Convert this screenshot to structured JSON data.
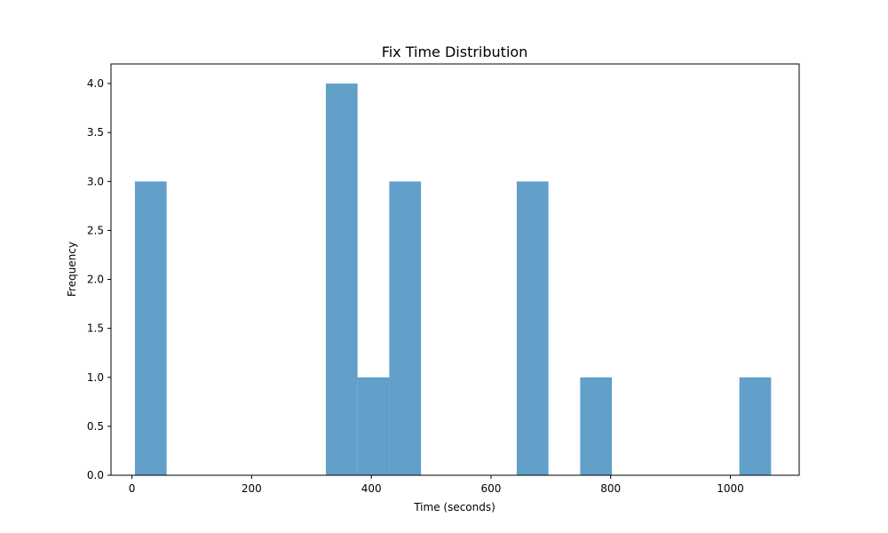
{
  "chart_data": {
    "type": "bar",
    "title": "Fix Time Distribution",
    "xlabel": "Time (seconds)",
    "ylabel": "Frequency",
    "bar_color": "#1f77b4",
    "bar_alpha": 0.7,
    "xlim": [
      -35,
      1115
    ],
    "ylim": [
      0,
      4.2
    ],
    "xticks": [
      0,
      200,
      400,
      600,
      800,
      1000
    ],
    "yticks": [
      0.0,
      0.5,
      1.0,
      1.5,
      2.0,
      2.5,
      3.0,
      3.5,
      4.0
    ],
    "grid": false,
    "bins": [
      {
        "x0": 5,
        "x1": 58,
        "value": 3
      },
      {
        "x0": 324,
        "x1": 377,
        "value": 4
      },
      {
        "x0": 377,
        "x1": 430,
        "value": 1
      },
      {
        "x0": 430,
        "x1": 483,
        "value": 3
      },
      {
        "x0": 643,
        "x1": 696,
        "value": 3
      },
      {
        "x0": 749,
        "x1": 802,
        "value": 1
      },
      {
        "x0": 1015,
        "x1": 1068,
        "value": 1
      }
    ]
  }
}
